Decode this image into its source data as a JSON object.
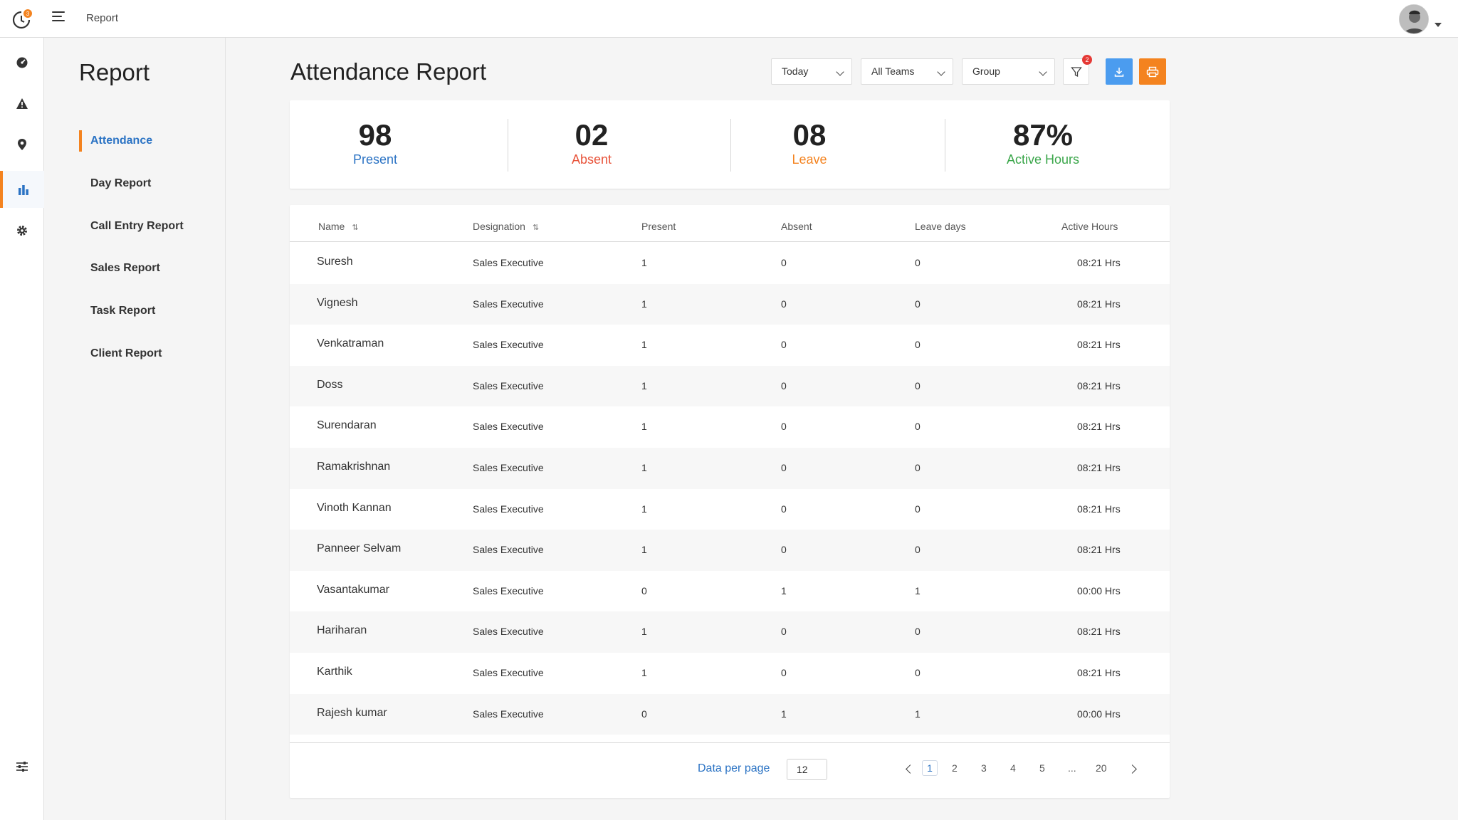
{
  "topbar": {
    "title": "Report",
    "notification_count": "3"
  },
  "rail": {
    "items": [
      {
        "icon": "dashboard-icon"
      },
      {
        "icon": "alert-icon"
      },
      {
        "icon": "location-icon"
      },
      {
        "icon": "bar-chart-icon",
        "active": true
      },
      {
        "icon": "gear-icon"
      }
    ],
    "bottom_icon": "sliders-icon"
  },
  "subnav": {
    "title": "Report",
    "items": [
      {
        "label": "Attendance",
        "active": true
      },
      {
        "label": "Day Report"
      },
      {
        "label": "Call Entry Report"
      },
      {
        "label": "Sales Report"
      },
      {
        "label": "Task Report"
      },
      {
        "label": "Client Report"
      }
    ]
  },
  "main": {
    "title": "Attendance Report",
    "filters": {
      "period": "Today",
      "teams": "All Teams",
      "group": "Group",
      "filter_badge": "2"
    }
  },
  "stats": [
    {
      "value": "98",
      "label": "Present",
      "color": "#2b73c4"
    },
    {
      "value": "02",
      "label": "Absent",
      "color": "#e8533a"
    },
    {
      "value": "08",
      "label": "Leave",
      "color": "#f4831f"
    },
    {
      "value": "87%",
      "label": "Active Hours",
      "color": "#3aa64a"
    }
  ],
  "table": {
    "columns": [
      "Name",
      "Designation",
      "Present",
      "Absent",
      "Leave days",
      "Active Hours"
    ],
    "rows": [
      {
        "name": "Suresh",
        "designation": "Sales Executive",
        "present": "1",
        "absent": "0",
        "leave": "0",
        "hours": "08:21 Hrs"
      },
      {
        "name": "Vignesh",
        "designation": "Sales Executive",
        "present": "1",
        "absent": "0",
        "leave": "0",
        "hours": "08:21 Hrs"
      },
      {
        "name": "Venkatraman",
        "designation": "Sales Executive",
        "present": "1",
        "absent": "0",
        "leave": "0",
        "hours": "08:21 Hrs"
      },
      {
        "name": "Doss",
        "designation": "Sales Executive",
        "present": "1",
        "absent": "0",
        "leave": "0",
        "hours": "08:21 Hrs"
      },
      {
        "name": "Surendaran",
        "designation": "Sales Executive",
        "present": "1",
        "absent": "0",
        "leave": "0",
        "hours": "08:21 Hrs"
      },
      {
        "name": "Ramakrishnan",
        "designation": "Sales Executive",
        "present": "1",
        "absent": "0",
        "leave": "0",
        "hours": "08:21 Hrs"
      },
      {
        "name": "Vinoth Kannan",
        "designation": "Sales Executive",
        "present": "1",
        "absent": "0",
        "leave": "0",
        "hours": "08:21 Hrs"
      },
      {
        "name": "Panneer Selvam",
        "designation": "Sales Executive",
        "present": "1",
        "absent": "0",
        "leave": "0",
        "hours": "08:21 Hrs"
      },
      {
        "name": "Vasantakumar",
        "designation": "Sales Executive",
        "present": "0",
        "absent": "1",
        "leave": "1",
        "hours": "00:00 Hrs"
      },
      {
        "name": "Hariharan",
        "designation": "Sales Executive",
        "present": "1",
        "absent": "0",
        "leave": "0",
        "hours": "08:21 Hrs"
      },
      {
        "name": "Karthik",
        "designation": "Sales Executive",
        "present": "1",
        "absent": "0",
        "leave": "0",
        "hours": "08:21 Hrs"
      },
      {
        "name": "Rajesh kumar",
        "designation": "Sales Executive",
        "present": "0",
        "absent": "1",
        "leave": "1",
        "hours": "00:00 Hrs"
      }
    ]
  },
  "pagination": {
    "per_page_label": "Data per page",
    "per_page_value": "12",
    "pages": [
      "1",
      "2",
      "3",
      "4",
      "5",
      "...",
      "20"
    ],
    "current": "1"
  },
  "colors": {
    "accent": "#f4831f",
    "primary": "#2b73c4",
    "download": "#4b9cef"
  }
}
